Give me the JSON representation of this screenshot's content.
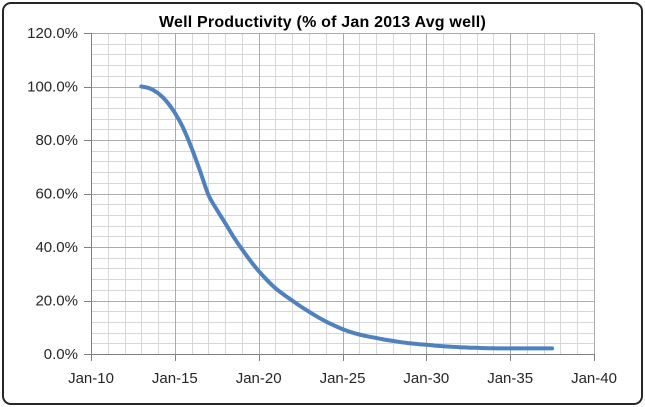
{
  "chart_data": {
    "type": "line",
    "title": "Well Productivity (% of Jan 2013 Avg well)",
    "xlabel": "",
    "ylabel": "",
    "legend": "none",
    "x_axis": {
      "ticks": [
        "Jan-10",
        "Jan-15",
        "Jan-20",
        "Jan-25",
        "Jan-30",
        "Jan-35",
        "Jan-40"
      ],
      "start_year": 2010,
      "end_year": 2040,
      "major_unit_years": 5,
      "minor_unit_years": 1
    },
    "y_axis": {
      "ticks": [
        "0.0%",
        "20.0%",
        "40.0%",
        "60.0%",
        "80.0%",
        "100.0%",
        "120.0%"
      ],
      "min": 0,
      "max": 120,
      "major_unit": 20,
      "minor_unit": 4,
      "format": "percent"
    },
    "grid": {
      "major": true,
      "minor": true
    },
    "series": [
      {
        "name": "Well Productivity (% of Jan 2013 Avg well)",
        "color": "#4f81bd",
        "points": [
          [
            "Jan-13",
            100.0
          ],
          [
            "Jul-13",
            99.3
          ],
          [
            "Jan-14",
            97.5
          ],
          [
            "Jul-14",
            94.5
          ],
          [
            "Jan-15",
            90.2
          ],
          [
            "Jul-15",
            84.5
          ],
          [
            "Jan-16",
            77.0
          ],
          [
            "Jul-16",
            68.5
          ],
          [
            "Jan-17",
            59.5
          ],
          [
            "Jul-17",
            54.0
          ],
          [
            "Jan-18",
            49.0
          ],
          [
            "Jul-18",
            43.8
          ],
          [
            "Jan-19",
            39.2
          ],
          [
            "Jul-19",
            34.9
          ],
          [
            "Jan-20",
            31.0
          ],
          [
            "Jul-20",
            27.6
          ],
          [
            "Jan-21",
            24.6
          ],
          [
            "Jul-21",
            22.2
          ],
          [
            "Jan-22",
            20.0
          ],
          [
            "Jul-22",
            17.8
          ],
          [
            "Jan-23",
            15.8
          ],
          [
            "Jul-23",
            13.9
          ],
          [
            "Jan-24",
            12.2
          ],
          [
            "Jul-24",
            10.7
          ],
          [
            "Jan-25",
            9.3
          ],
          [
            "Jul-25",
            8.2
          ],
          [
            "Jan-26",
            7.3
          ],
          [
            "Jul-26",
            6.6
          ],
          [
            "Jan-27",
            6.0
          ],
          [
            "Jul-27",
            5.4
          ],
          [
            "Jan-28",
            4.9
          ],
          [
            "Jul-28",
            4.4
          ],
          [
            "Jan-29",
            4.0
          ],
          [
            "Jul-29",
            3.7
          ],
          [
            "Jan-30",
            3.45
          ],
          [
            "Jul-30",
            3.15
          ],
          [
            "Jan-31",
            2.9
          ],
          [
            "Jul-31",
            2.7
          ],
          [
            "Jan-32",
            2.55
          ],
          [
            "Jul-32",
            2.4
          ],
          [
            "Jan-33",
            2.3
          ],
          [
            "Jul-33",
            2.2
          ],
          [
            "Jan-34",
            2.15
          ],
          [
            "Jul-34",
            2.1
          ],
          [
            "Jan-35",
            2.1
          ],
          [
            "Jul-35",
            2.1
          ],
          [
            "Jan-36",
            2.1
          ],
          [
            "Jul-36",
            2.1
          ],
          [
            "Jan-37",
            2.1
          ],
          [
            "Jul-37",
            2.1
          ]
        ]
      }
    ],
    "colors": {
      "series_line": "#4f81bd",
      "major_grid": "#ababab",
      "minor_grid": "#d7d7d7",
      "axis": "#808080",
      "chart_border": "#262626",
      "tick_text": "#262626",
      "title_text": "#000000"
    }
  }
}
